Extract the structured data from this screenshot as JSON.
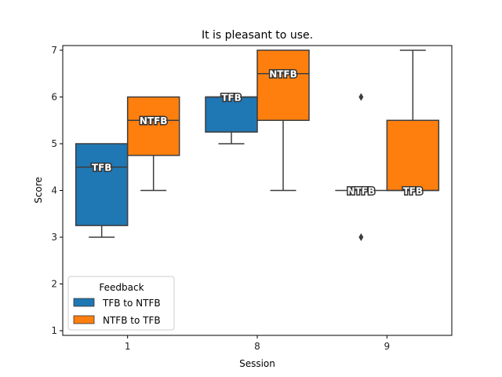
{
  "chart_data": {
    "type": "box",
    "title": "It is pleasant to use.",
    "xlabel": "Session",
    "ylabel": "Score",
    "categories": [
      "1",
      "8",
      "9"
    ],
    "ylim": [
      0.9,
      7.1
    ],
    "yticks": [
      1,
      2,
      3,
      4,
      5,
      6,
      7
    ],
    "grid": false,
    "legend": {
      "title": "Feedback",
      "placement": "lower-left",
      "entries": [
        "TFB to NTFB",
        "NTFB to TFB"
      ]
    },
    "series": [
      {
        "name": "TFB to NTFB",
        "color": "#1f77b4",
        "boxes": [
          {
            "category": "1",
            "q1": 3.25,
            "median": 4.5,
            "q3": 5.0,
            "whisker_low": 3.0,
            "whisker_high": 5.0,
            "outliers": [],
            "label": "TFB"
          },
          {
            "category": "8",
            "q1": 5.25,
            "median": 6.0,
            "q3": 6.0,
            "whisker_low": 5.0,
            "whisker_high": 6.0,
            "outliers": [],
            "label": "TFB"
          },
          {
            "category": "9",
            "q1": 4.0,
            "median": 4.0,
            "q3": 4.0,
            "whisker_low": 4.0,
            "whisker_high": 4.0,
            "outliers": [
              6,
              3
            ],
            "label": "NTFB"
          }
        ]
      },
      {
        "name": "NTFB to TFB",
        "color": "#ff7f0e",
        "boxes": [
          {
            "category": "1",
            "q1": 4.75,
            "median": 5.5,
            "q3": 6.0,
            "whisker_low": 4.0,
            "whisker_high": 6.0,
            "outliers": [],
            "label": "NTFB"
          },
          {
            "category": "8",
            "q1": 5.5,
            "median": 6.5,
            "q3": 7.0,
            "whisker_low": 4.0,
            "whisker_high": 7.0,
            "outliers": [],
            "label": "NTFB"
          },
          {
            "category": "9",
            "q1": 4.0,
            "median": 4.0,
            "q3": 5.5,
            "whisker_low": 4.0,
            "whisker_high": 7.0,
            "outliers": [],
            "label": "TFB"
          }
        ]
      }
    ]
  }
}
